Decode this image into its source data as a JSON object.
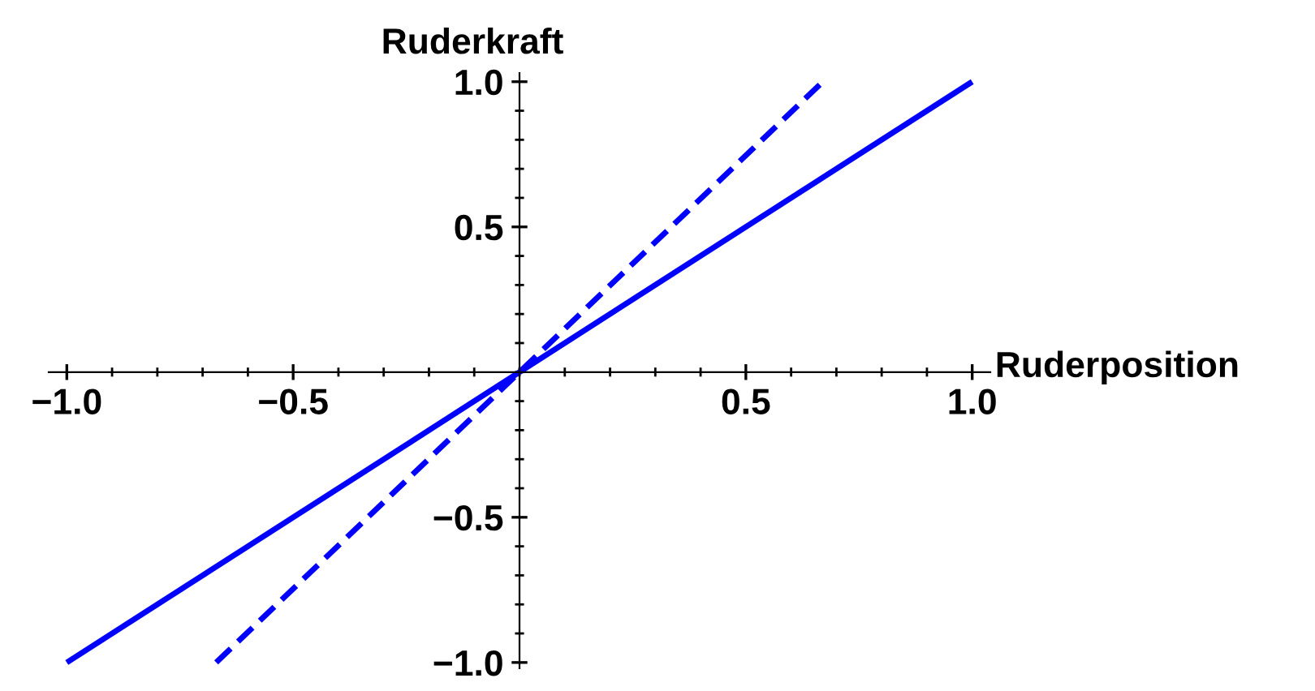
{
  "chart_data": {
    "type": "line",
    "xlabel": "Ruderposition",
    "ylabel": "Ruderkraft",
    "xlim": [
      -1.04,
      1.04
    ],
    "ylim": [
      -1.02,
      1.03
    ],
    "xticks": [
      {
        "value": -1,
        "label": "−1.0"
      },
      -0.5,
      0.5,
      {
        "value": 1,
        "label": "1.0"
      }
    ],
    "yticks": [
      {
        "value": -1,
        "label": "−1.0"
      },
      -0.5,
      0.5,
      {
        "value": 1,
        "label": "1.0"
      }
    ],
    "grid": false,
    "legend": false,
    "marker": "none",
    "series": [
      {
        "color": "#0000ff",
        "line_style": "solid",
        "x": [
          -1.0,
          1.0
        ],
        "values": [
          -1.0,
          1.0
        ]
      },
      {
        "color": "#0000ff",
        "line_style": "dashed",
        "x": [
          -0.67,
          0.67
        ],
        "values": [
          -1.0,
          1.0
        ]
      }
    ]
  }
}
